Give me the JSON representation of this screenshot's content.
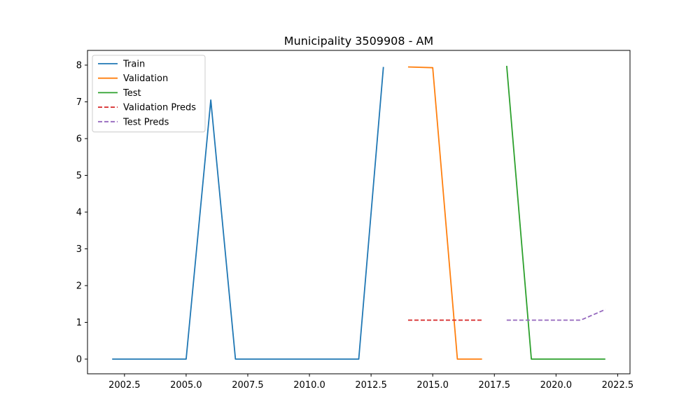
{
  "chart_data": {
    "type": "line",
    "title": "Municipality 3509908 - AM",
    "xlabel": "",
    "ylabel": "",
    "xlim": [
      2001.0,
      2023.0
    ],
    "ylim": [
      -0.4,
      8.4
    ],
    "xticks": [
      2002.5,
      2005.0,
      2007.5,
      2010.0,
      2012.5,
      2015.0,
      2017.5,
      2020.0,
      2022.5
    ],
    "xtick_labels": [
      "2002.5",
      "2005.0",
      "2007.5",
      "2010.0",
      "2012.5",
      "2015.0",
      "2017.5",
      "2020.0",
      "2022.5"
    ],
    "yticks": [
      0,
      1,
      2,
      3,
      4,
      5,
      6,
      7,
      8
    ],
    "ytick_labels": [
      "0",
      "1",
      "2",
      "3",
      "4",
      "5",
      "6",
      "7",
      "8"
    ],
    "grid": false,
    "legend_position": "top-left",
    "series": [
      {
        "name": "Train",
        "style": "solid",
        "color": "#1f77b4",
        "x": [
          2002,
          2003,
          2004,
          2005,
          2006,
          2007,
          2008,
          2009,
          2010,
          2011,
          2012,
          2013
        ],
        "y": [
          0,
          0,
          0,
          0,
          7.05,
          0,
          0,
          0,
          0,
          0,
          0,
          7.95
        ]
      },
      {
        "name": "Validation",
        "style": "solid",
        "color": "#ff7f0e",
        "x": [
          2014,
          2015,
          2016,
          2017
        ],
        "y": [
          7.95,
          7.93,
          0,
          0
        ]
      },
      {
        "name": "Test",
        "style": "solid",
        "color": "#2ca02c",
        "x": [
          2018,
          2019,
          2020,
          2021,
          2022
        ],
        "y": [
          7.98,
          0,
          0,
          0,
          0
        ]
      },
      {
        "name": "Validation Preds",
        "style": "dashed",
        "color": "#d62728",
        "x": [
          2014,
          2015,
          2016,
          2017
        ],
        "y": [
          1.06,
          1.06,
          1.06,
          1.06
        ]
      },
      {
        "name": "Test Preds",
        "style": "dashed",
        "color": "#9467bd",
        "x": [
          2018,
          2019,
          2020,
          2021,
          2022
        ],
        "y": [
          1.06,
          1.06,
          1.06,
          1.06,
          1.35
        ]
      }
    ]
  }
}
